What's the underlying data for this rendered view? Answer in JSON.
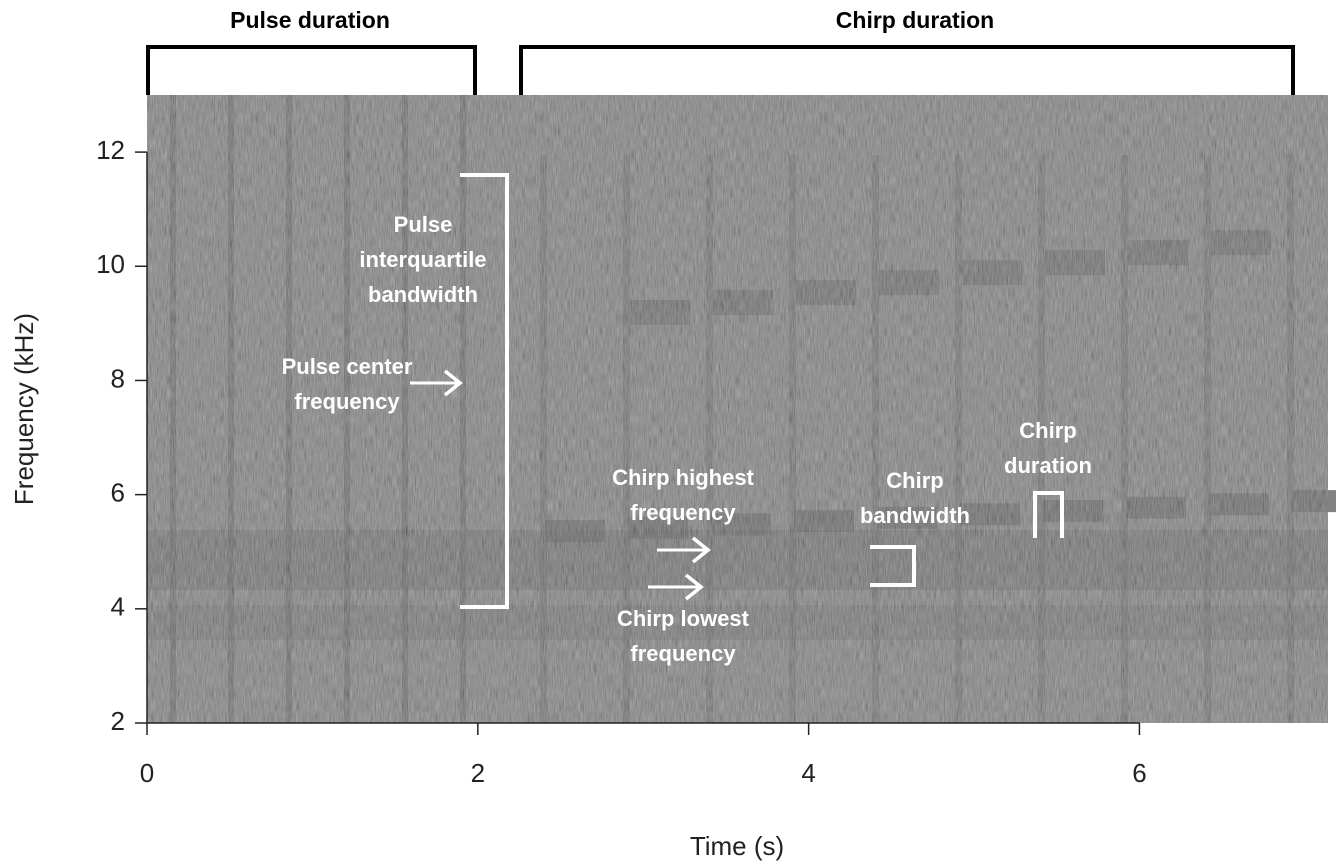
{
  "chart_data": {
    "type": "spectrogram",
    "x_label": "Time (s)",
    "y_label": "Frequency (kHz)",
    "xlim": [
      0,
      7.14
    ],
    "ylim": [
      2,
      13
    ],
    "xticks": [
      0,
      2,
      4,
      6
    ],
    "yticks": [
      2,
      4,
      6,
      8,
      10,
      12
    ],
    "annotations": [
      [
        "Pulse duration"
      ],
      [
        "Chirp duration"
      ],
      [
        "Pulse",
        "interquartile",
        "bandwidth"
      ],
      [
        "Pulse center",
        "frequency"
      ],
      [
        "Chirp highest",
        "frequency"
      ],
      [
        "Chirp lowest",
        "frequency"
      ],
      [
        "Chirp",
        "bandwidth"
      ],
      [
        "Chirp",
        "duration"
      ]
    ]
  }
}
